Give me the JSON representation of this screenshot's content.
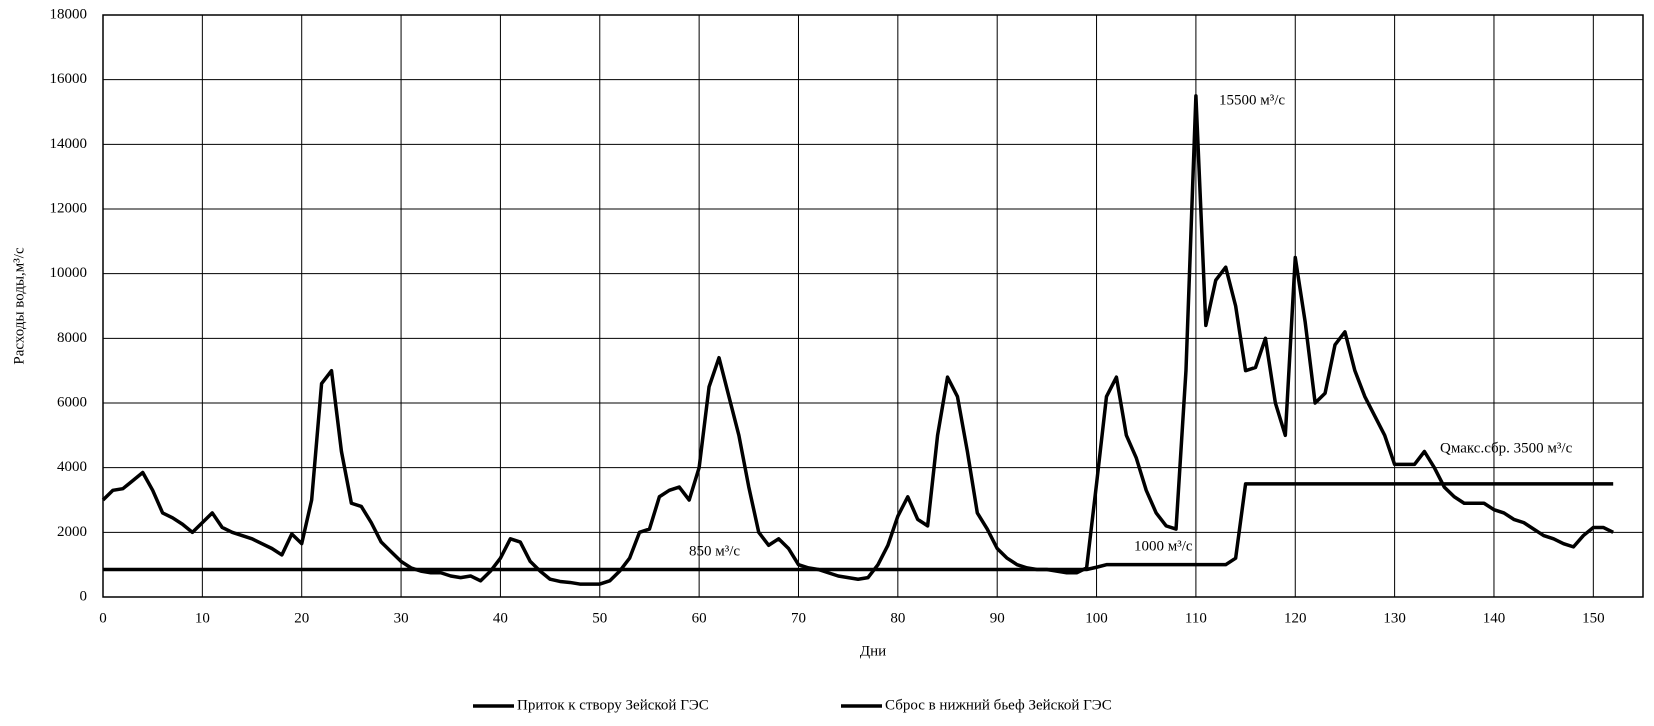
{
  "chart_data": {
    "type": "line",
    "y_label": "Расходы воды,м³/с",
    "x_label": "Дни",
    "annotations": [
      "15500 м³/с",
      "Qмакс.сбр. 3500 м³/с",
      "850 м³/с",
      "1000 м³/с"
    ],
    "xlim": [
      0,
      155
    ],
    "ylim": [
      0,
      18000
    ],
    "xticks": [
      0,
      10,
      20,
      30,
      40,
      50,
      60,
      70,
      80,
      90,
      100,
      110,
      120,
      130,
      140,
      150
    ],
    "yticks": [
      0,
      2000,
      4000,
      6000,
      8000,
      10000,
      12000,
      14000,
      16000,
      18000
    ],
    "grid": true,
    "legend": "bottom",
    "x": [
      0,
      1,
      2,
      3,
      4,
      5,
      6,
      7,
      8,
      9,
      10,
      11,
      12,
      13,
      14,
      15,
      16,
      17,
      18,
      19,
      20,
      21,
      22,
      23,
      24,
      25,
      26,
      27,
      28,
      29,
      30,
      31,
      32,
      33,
      34,
      35,
      36,
      37,
      38,
      39,
      40,
      41,
      42,
      43,
      44,
      45,
      46,
      47,
      48,
      49,
      50,
      51,
      52,
      53,
      54,
      55,
      56,
      57,
      58,
      59,
      60,
      61,
      62,
      63,
      64,
      65,
      66,
      67,
      68,
      69,
      70,
      71,
      72,
      73,
      74,
      75,
      76,
      77,
      78,
      79,
      80,
      81,
      82,
      83,
      84,
      85,
      86,
      87,
      88,
      89,
      90,
      91,
      92,
      93,
      94,
      95,
      96,
      97,
      98,
      99,
      100,
      101,
      102,
      103,
      104,
      105,
      106,
      107,
      108,
      109,
      110,
      111,
      112,
      113,
      114,
      115,
      116,
      117,
      118,
      119,
      120,
      121,
      122,
      123,
      124,
      125,
      126,
      127,
      128,
      129,
      130,
      131,
      132,
      133,
      134,
      135,
      136,
      137,
      138,
      139,
      140,
      141,
      142,
      143,
      144,
      145,
      146,
      147,
      148,
      149,
      150,
      151,
      152
    ],
    "series": [
      {
        "name": "Приток к створу Зейской ГЭС",
        "color": "#000000",
        "values": [
          3000,
          3300,
          3350,
          3600,
          3850,
          3300,
          2600,
          2450,
          2250,
          2000,
          2300,
          2600,
          2150,
          2000,
          1900,
          1800,
          1650,
          1500,
          1300,
          1950,
          1650,
          3000,
          6600,
          7000,
          4500,
          2900,
          2800,
          2300,
          1700,
          1400,
          1100,
          900,
          800,
          750,
          750,
          650,
          600,
          650,
          500,
          800,
          1200,
          1800,
          1700,
          1100,
          800,
          550,
          480,
          450,
          400,
          400,
          400,
          500,
          800,
          1200,
          2000,
          2100,
          3100,
          3300,
          3400,
          3000,
          4000,
          6500,
          7400,
          6200,
          5000,
          3400,
          2000,
          1600,
          1800,
          1500,
          1000,
          900,
          850,
          750,
          650,
          600,
          550,
          600,
          1000,
          1600,
          2500,
          3100,
          2400,
          2200,
          5000,
          6800,
          6200,
          4500,
          2600,
          2100,
          1500,
          1200,
          1000,
          900,
          850,
          850,
          800,
          750,
          750,
          900,
          3500,
          6200,
          6800,
          5000,
          4300,
          3300,
          2600,
          2200,
          2100,
          7000,
          15500,
          8400,
          9800,
          10200,
          9000,
          7000,
          7100,
          8000,
          6000,
          5000,
          10500,
          8500,
          6000,
          6300,
          7800,
          8200,
          7000,
          6200,
          5600,
          5000,
          4100,
          4100,
          4100,
          4500,
          4000,
          3400,
          3100,
          2900,
          2900,
          2900,
          2700,
          2600,
          2400,
          2300,
          2100,
          1900,
          1800,
          1650,
          1550,
          1900,
          2150,
          2150,
          2000
        ]
      },
      {
        "name": "Сброс в нижний бьеф Зейской ГЭС",
        "color": "#000000",
        "values": [
          850,
          850,
          850,
          850,
          850,
          850,
          850,
          850,
          850,
          850,
          850,
          850,
          850,
          850,
          850,
          850,
          850,
          850,
          850,
          850,
          850,
          850,
          850,
          850,
          850,
          850,
          850,
          850,
          850,
          850,
          850,
          850,
          850,
          850,
          850,
          850,
          850,
          850,
          850,
          850,
          850,
          850,
          850,
          850,
          850,
          850,
          850,
          850,
          850,
          850,
          850,
          850,
          850,
          850,
          850,
          850,
          850,
          850,
          850,
          850,
          850,
          850,
          850,
          850,
          850,
          850,
          850,
          850,
          850,
          850,
          850,
          850,
          850,
          850,
          850,
          850,
          850,
          850,
          850,
          850,
          850,
          850,
          850,
          850,
          850,
          850,
          850,
          850,
          850,
          850,
          850,
          850,
          850,
          850,
          850,
          850,
          850,
          850,
          850,
          850,
          920,
          1000,
          1000,
          1000,
          1000,
          1000,
          1000,
          1000,
          1000,
          1000,
          1000,
          1000,
          1000,
          1000,
          1200,
          3500,
          3500,
          3500,
          3500,
          3500,
          3500,
          3500,
          3500,
          3500,
          3500,
          3500,
          3500,
          3500,
          3500,
          3500,
          3500,
          3500,
          3500,
          3500,
          3500,
          3500,
          3500,
          3500,
          3500,
          3500,
          3500,
          3500,
          3500,
          3500,
          3500,
          3500,
          3500,
          3500,
          3500,
          3500,
          3500,
          3500,
          3500
        ]
      }
    ]
  }
}
